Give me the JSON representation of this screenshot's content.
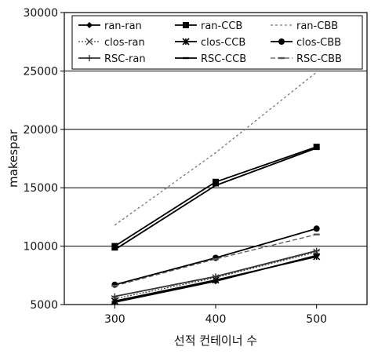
{
  "chart_data": {
    "type": "line",
    "categories": [
      "300",
      "400",
      "500"
    ],
    "x": [
      300,
      400,
      500
    ],
    "xlabel": "선적 컨테이너 수",
    "ylabel": "makespar",
    "ylim": [
      5000,
      30000
    ],
    "yticks": [
      "5000",
      "10000",
      "15000",
      "20000",
      "25000",
      "30000"
    ],
    "xticks": [
      "300",
      "400",
      "500"
    ],
    "grid": "horizontal",
    "legend_placement": "top",
    "series": [
      {
        "name": "ran-ran",
        "values": [
          5200,
          7000,
          9200
        ],
        "marker": "diamond",
        "dash": "",
        "color": "#000000"
      },
      {
        "name": "ran-CCB",
        "values": [
          10000,
          15500,
          18500
        ],
        "marker": "square",
        "dash": "",
        "color": "#000000"
      },
      {
        "name": "ran-CBB",
        "values": [
          11800,
          18000,
          24900
        ],
        "marker": "none",
        "dash": "3,3",
        "color": "#777777"
      },
      {
        "name": "clos-ran",
        "values": [
          5500,
          7300,
          9500
        ],
        "marker": "x",
        "dash": "2,2",
        "color": "#444444"
      },
      {
        "name": "clos-CCB",
        "values": [
          5300,
          7100,
          9100
        ],
        "marker": "star",
        "dash": "",
        "color": "#000000"
      },
      {
        "name": "clos-CBB",
        "values": [
          6700,
          9000,
          11500
        ],
        "marker": "circle",
        "dash": "",
        "color": "#000000"
      },
      {
        "name": "RSC-ran",
        "values": [
          5700,
          7400,
          9600
        ],
        "marker": "plus",
        "dash": "",
        "color": "#333333"
      },
      {
        "name": "RSC-CCB",
        "values": [
          9700,
          15200,
          18400
        ],
        "marker": "dash",
        "dash": "",
        "color": "#000000"
      },
      {
        "name": "RSC-CBB",
        "values": [
          6600,
          8900,
          11000
        ],
        "marker": "dash",
        "dash": "6,3",
        "color": "#555555"
      }
    ]
  }
}
